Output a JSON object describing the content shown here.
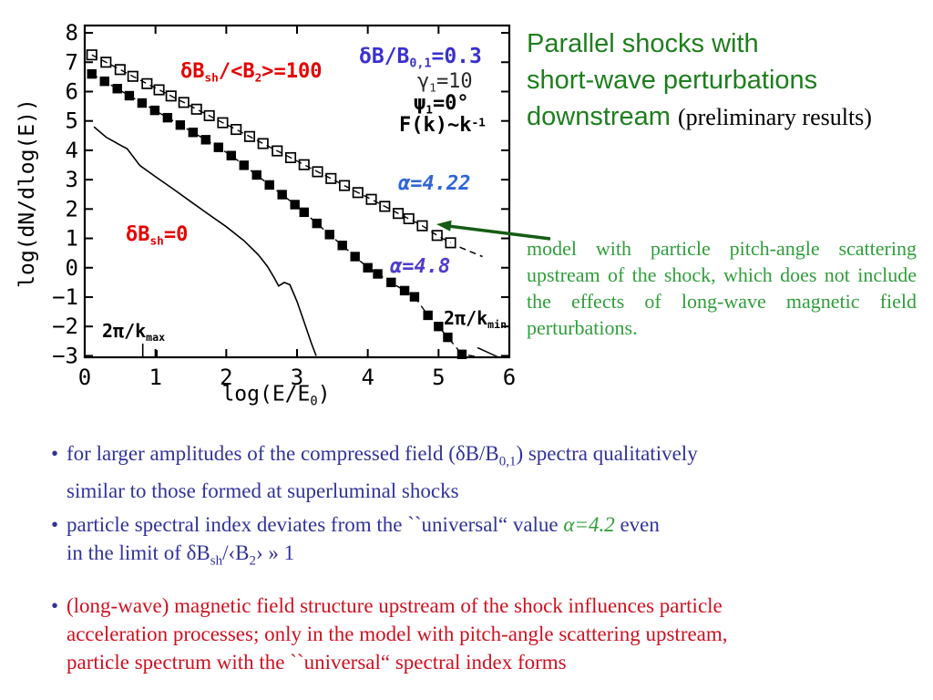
{
  "title": {
    "line1": "Parallel shocks with",
    "line2": "short-wave perturbations",
    "line3_green": "downstream",
    "line3_black": "(preliminary results)"
  },
  "side_note": "model with particle pitch-angle scattering upstream of the shock, which does not include the effects of long-wave magnetic field perturbations.",
  "bullets": {
    "dot": "•",
    "b1": {
      "l1a": "for larger amplitudes of the compressed field (δB/B",
      "l1sub": "0,1",
      "l1b": ") spectra qualitatively",
      "l2": "similar to those formed at superluminal shocks"
    },
    "b2": {
      "l1a": "particle spectral index deviates from the ``universal“ value ",
      "alpha": "α=4.2",
      "l1b": " even",
      "l2a": "in the limit of  δB",
      "l2sub1": "sh",
      "l2b": "/‹B",
      "l2sub2": "2",
      "l2c": "› » 1"
    },
    "b3": {
      "l1": "(long-wave) magnetic field structure upstream of the shock influences particle",
      "l2": "acceleration processes; only in the model with pitch-angle scattering upstream,",
      "l3": "particle spectrum with the ``universal“ spectral index forms"
    }
  },
  "chart_data": {
    "type": "scatter",
    "xlabel": {
      "p1": "log(E/E",
      "sub": "0",
      "p2": ")"
    },
    "ylabel": "log(dN/dlog(E))",
    "xlim": [
      0,
      6
    ],
    "ylim": [
      -3.05,
      8.25
    ],
    "xticks": [
      0,
      1,
      2,
      3,
      4,
      5,
      6
    ],
    "yticks": [
      -3,
      -2,
      -1,
      0,
      1,
      2,
      3,
      4,
      5,
      6,
      7,
      8
    ],
    "kscale_ticks_x": [
      0.82,
      1.02
    ],
    "grid": false,
    "legend_position": "none",
    "series": [
      {
        "name": "dBsh/<B2>=100 (open squares)",
        "marker": "open-square",
        "line": "dashed",
        "spectral_index_label": "α=4.22",
        "points": [
          [
            0.1,
            7.25
          ],
          [
            0.3,
            7.0
          ],
          [
            0.5,
            6.75
          ],
          [
            0.68,
            6.52
          ],
          [
            0.88,
            6.27
          ],
          [
            1.05,
            6.06
          ],
          [
            1.22,
            5.85
          ],
          [
            1.4,
            5.63
          ],
          [
            1.58,
            5.4
          ],
          [
            1.76,
            5.18
          ],
          [
            1.95,
            4.94
          ],
          [
            2.14,
            4.71
          ],
          [
            2.33,
            4.47
          ],
          [
            2.52,
            4.23
          ],
          [
            2.72,
            3.98
          ],
          [
            2.91,
            3.75
          ],
          [
            3.1,
            3.51
          ],
          [
            3.29,
            3.27
          ],
          [
            3.48,
            3.04
          ],
          [
            3.67,
            2.8
          ],
          [
            3.86,
            2.56
          ],
          [
            4.05,
            2.33
          ],
          [
            4.24,
            2.09
          ],
          [
            4.43,
            1.85
          ],
          [
            4.58,
            1.67
          ],
          [
            4.77,
            1.43
          ],
          [
            4.98,
            1.1
          ],
          [
            5.17,
            0.85
          ]
        ]
      },
      {
        "name": "pitch-angle scattering model (filled squares)",
        "marker": "filled-square",
        "line": "dashed",
        "spectral_index_label": "α=4.8",
        "points": [
          [
            0.1,
            6.6
          ],
          [
            0.28,
            6.35
          ],
          [
            0.46,
            6.1
          ],
          [
            0.63,
            5.86
          ],
          [
            0.81,
            5.61
          ],
          [
            0.99,
            5.36
          ],
          [
            1.17,
            5.11
          ],
          [
            1.35,
            4.86
          ],
          [
            1.53,
            4.61
          ],
          [
            1.71,
            4.36
          ],
          [
            1.89,
            4.1
          ],
          [
            2.07,
            3.82
          ],
          [
            2.25,
            3.49
          ],
          [
            2.43,
            3.16
          ],
          [
            2.61,
            2.82
          ],
          [
            2.79,
            2.49
          ],
          [
            2.97,
            2.15
          ],
          [
            3.1,
            1.89
          ],
          [
            3.28,
            1.51
          ],
          [
            3.46,
            1.13
          ],
          [
            3.64,
            0.76
          ],
          [
            3.82,
            0.38
          ],
          [
            4.0,
            0.0
          ],
          [
            4.14,
            -0.21
          ],
          [
            4.33,
            -0.5
          ],
          [
            4.52,
            -0.78
          ],
          [
            4.66,
            -0.99
          ],
          [
            4.85,
            -1.62
          ],
          [
            5.0,
            -2.0
          ],
          [
            5.13,
            -2.37
          ],
          [
            5.33,
            -2.95
          ]
        ]
      },
      {
        "name": "dBsh=0 (thin line)",
        "marker": "none",
        "line": "solid",
        "points": [
          [
            0.13,
            4.8
          ],
          [
            0.3,
            4.45
          ],
          [
            0.5,
            4.18
          ],
          [
            0.6,
            4.05
          ],
          [
            0.78,
            3.48
          ],
          [
            1.0,
            3.1
          ],
          [
            1.25,
            2.68
          ],
          [
            1.5,
            2.25
          ],
          [
            1.75,
            1.82
          ],
          [
            2.0,
            1.4
          ],
          [
            2.25,
            0.92
          ],
          [
            2.45,
            0.45
          ],
          [
            2.58,
            0.05
          ],
          [
            2.68,
            -0.35
          ],
          [
            2.74,
            -0.62
          ],
          [
            2.82,
            -0.5
          ],
          [
            2.9,
            -0.58
          ],
          [
            3.0,
            -1.15
          ],
          [
            3.1,
            -1.85
          ],
          [
            3.2,
            -2.55
          ],
          [
            3.27,
            -3.0
          ]
        ]
      }
    ],
    "extra_segments": [
      {
        "style": "dashed",
        "points": [
          [
            5.3,
            0.7
          ],
          [
            5.62,
            0.38
          ]
        ]
      },
      {
        "style": "dashed",
        "points": [
          [
            5.42,
            -2.98
          ],
          [
            5.58,
            -3.05
          ]
        ]
      },
      {
        "style": "solid",
        "points": [
          [
            5.55,
            -2.72
          ],
          [
            5.85,
            -3.05
          ]
        ]
      }
    ],
    "annotations": {
      "series_open_label": {
        "p1": "δB",
        "sub1": "sh",
        "p2": "/<B",
        "sub2": "2",
        "p3": ">=100"
      },
      "field_label": {
        "p1": "δB/B",
        "sub1": "0,1",
        "p2": "=0.3"
      },
      "gamma_label": {
        "p1": "γ",
        "sub1": "1",
        "p2": "=10"
      },
      "psi_label": {
        "p1": "ψ",
        "sub1": "1",
        "p2": "=0°"
      },
      "spectrum_label": {
        "p1": "F(k)~k",
        "sup1": "-1"
      },
      "alpha_open": "α=4.22",
      "alpha_filled": "α=4.8",
      "line_label": {
        "p1": "δB",
        "sub1": "sh",
        "p2": "=0"
      },
      "kmax_label": {
        "p1": "2π/k",
        "sub1": "max"
      },
      "kmin_label": {
        "p1": "2π/k",
        "sub1": "min"
      }
    },
    "colors": {
      "frame": "#000000",
      "red_label": "#e60000",
      "blue_field": "#3a30d0",
      "blue_alpha_open": "#2e66d9",
      "violet_alpha_filled": "#4f3ccd",
      "arrow_green": "#155c15",
      "title_green": "#1e7e1e",
      "note_green": "#2f9e3b",
      "bullet_blue": "#32329b",
      "bullet_red": "#cf1020"
    }
  }
}
